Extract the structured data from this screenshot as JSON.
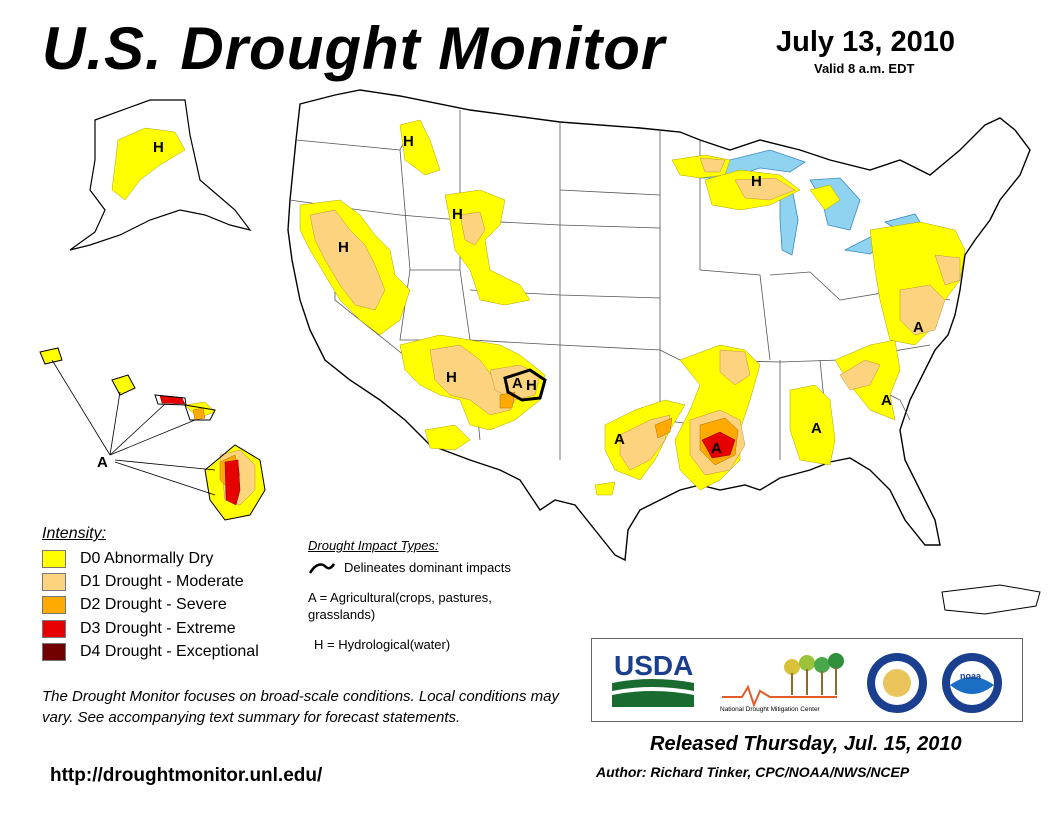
{
  "header": {
    "title": "U.S. Drought Monitor",
    "date": "July 13, 2010",
    "valid": "Valid 8 a.m. EDT"
  },
  "legend": {
    "title": "Intensity:",
    "items": [
      {
        "label": "D0 Abnormally Dry",
        "color": "#ffff00"
      },
      {
        "label": "D1 Drought - Moderate",
        "color": "#fcd37f"
      },
      {
        "label": "D2 Drought - Severe",
        "color": "#ffaa00"
      },
      {
        "label": "D3 Drought - Extreme",
        "color": "#e60000"
      },
      {
        "label": "D4 Drought - Exceptional",
        "color": "#730000"
      }
    ]
  },
  "impacts": {
    "title": "Drought Impact Types:",
    "delineates": "Delineates dominant impacts",
    "agricultural": "A = Agricultural(crops, pastures, grasslands)",
    "hydrological": "H = Hydrological(water)"
  },
  "map_labels": {
    "alaska_h": "H",
    "hawaii_a": "A",
    "pnw_h": "H",
    "idaho_h": "H",
    "wyoming_h": "H",
    "michigan_h": "H",
    "southwest_h": "H",
    "newmexico_h": "H",
    "texas_a": "A",
    "louisiana_a": "A",
    "alabama_a": "A",
    "carolina_a": "A",
    "virginia_a": "A",
    "newmexico_a": "A"
  },
  "note": "The Drought Monitor focuses on broad-scale conditions. Local conditions may vary. See accompanying text summary for forecast statements.",
  "url": "http://droughtmonitor.unl.edu/",
  "logos": {
    "usda": "USDA",
    "ndmc": "National Drought Mitigation Center",
    "noaa": "noaa"
  },
  "footer": {
    "released": "Released Thursday, Jul. 15, 2010",
    "author": "Author: Richard Tinker, CPC/NOAA/NWS/NCEP"
  },
  "colors": {
    "water": "#8fd3f0",
    "outline": "#000000",
    "state_line": "#666666"
  }
}
